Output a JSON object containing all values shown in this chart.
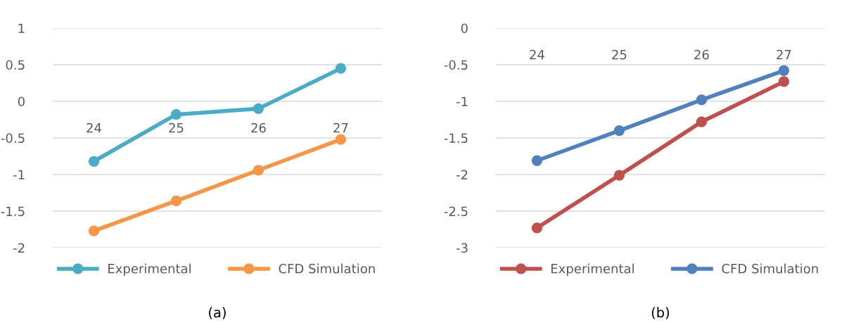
{
  "chart_data": [
    {
      "type": "line",
      "title": "(a)",
      "categories": [
        "24",
        "25",
        "26",
        "27"
      ],
      "ylim": [
        -2,
        1
      ],
      "yticks": [
        -2,
        -1.5,
        -1,
        -0.5,
        0,
        0.5,
        1
      ],
      "grid": "y",
      "legend": "bottom",
      "marker": "circle",
      "line_style": "solid",
      "series": [
        {
          "name": "Experimental",
          "color": "#4bacc6",
          "values": [
            -0.82,
            -0.18,
            -0.1,
            0.45
          ]
        },
        {
          "name": "CFD Simulation",
          "color": "#f79646",
          "values": [
            -1.77,
            -1.36,
            -0.94,
            -0.52
          ]
        }
      ]
    },
    {
      "type": "line",
      "title": "(b)",
      "categories": [
        "24",
        "25",
        "26",
        "27"
      ],
      "ylim": [
        -3,
        0
      ],
      "yticks": [
        -3,
        -2.5,
        -2,
        -1.5,
        -1,
        -0.5,
        0
      ],
      "grid": "y",
      "legend": "bottom",
      "marker": "circle",
      "line_style": "solid",
      "series": [
        {
          "name": "Experimental",
          "color": "#c0504d",
          "values": [
            -2.73,
            -2.01,
            -1.28,
            -0.73
          ]
        },
        {
          "name": "CFD Simulation",
          "color": "#4f81bd",
          "values": [
            -1.81,
            -1.4,
            -0.98,
            -0.58
          ]
        }
      ]
    }
  ]
}
